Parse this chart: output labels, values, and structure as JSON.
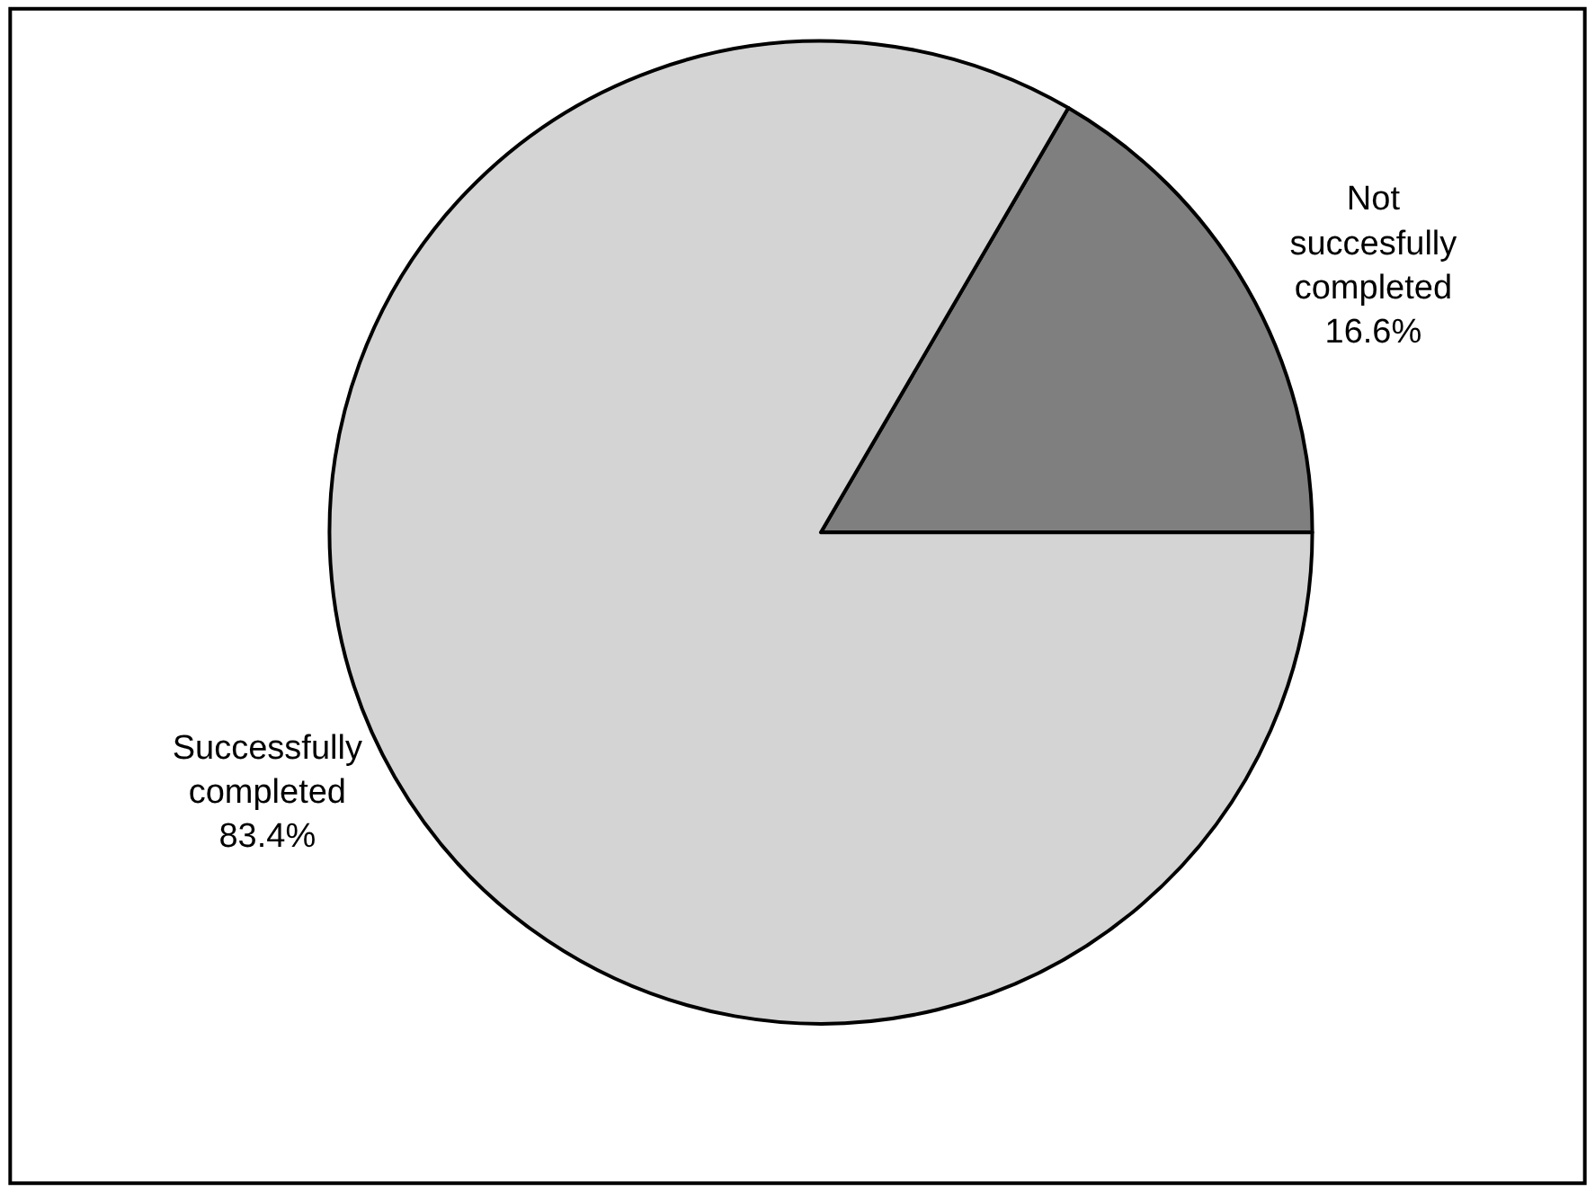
{
  "chart_data": {
    "type": "pie",
    "categories": [
      "Not succesfully completed",
      "Successfully completed"
    ],
    "values": [
      16.6,
      83.4
    ],
    "value_labels": [
      "16.6%",
      "83.4%"
    ],
    "colors": [
      "#7f7f7f",
      "#d4d4d4"
    ],
    "legend": false
  }
}
